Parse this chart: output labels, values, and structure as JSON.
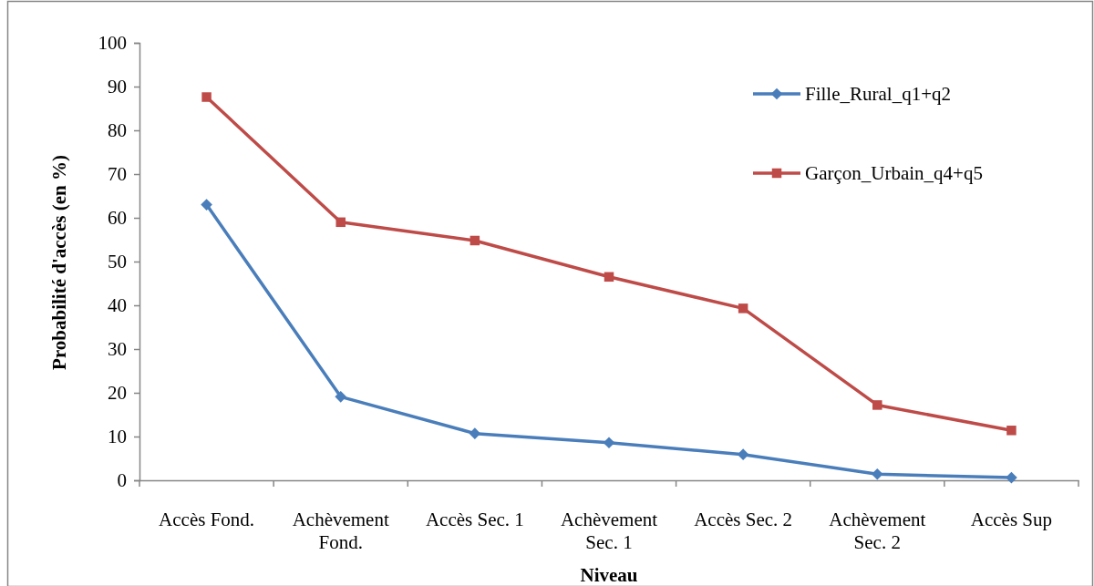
{
  "chart_data": {
    "type": "line",
    "xlabel": "Niveau",
    "ylabel": "Probabilité d'accès (en %)",
    "categories": [
      "Accès Fond.",
      "Achèvement Fond.",
      "Accès Sec. 1",
      "Achèvement Sec. 1",
      "Accès Sec. 2",
      "Achèvement Sec. 2",
      "Accès Sup"
    ],
    "ylim": [
      0,
      100
    ],
    "yticks": [
      0,
      10,
      20,
      30,
      40,
      50,
      60,
      70,
      80,
      90,
      100
    ],
    "legend": "top right",
    "series": [
      {
        "name": "Fille_Rural_q1+q2",
        "color": "#4a7ebb",
        "marker": "diamond",
        "values": [
          63.0,
          19.1,
          10.7,
          8.6,
          5.9,
          1.4,
          0.6
        ]
      },
      {
        "name": "Garçon_Urbain_q4+q5",
        "color": "#be4b48",
        "marker": "square",
        "values": [
          87.6,
          59.0,
          54.8,
          46.5,
          39.3,
          17.2,
          11.4
        ]
      }
    ]
  }
}
